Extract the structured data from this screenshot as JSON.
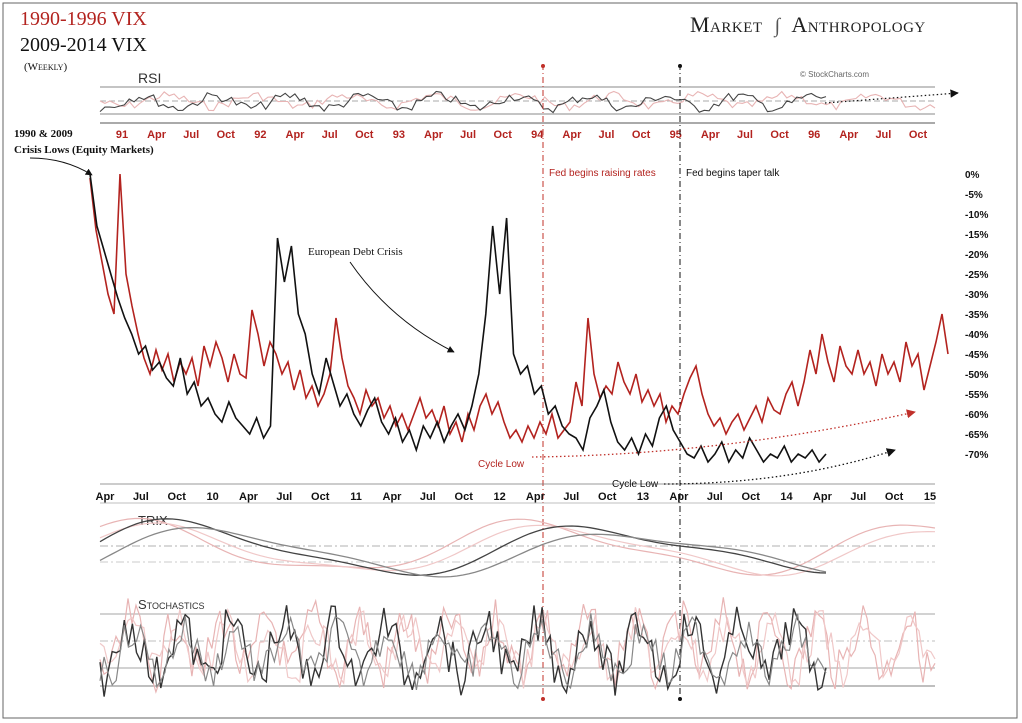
{
  "header": {
    "title_line1": "1990-1996 VIX",
    "title_line2": "2009-2014 VIX",
    "title_line3": "(Weekly)",
    "brand_left": "Market",
    "brand_right": "Anthropology",
    "brand_symbol": "dna-helix-icon",
    "credit": "© StockCharts.com"
  },
  "colors": {
    "red": "#b3231f",
    "black": "#111111",
    "pink": "#e8b4b4",
    "grey": "#777777"
  },
  "panels": {
    "rsi_label": "RSI",
    "trix_label": "TRIX",
    "stoch_label": "Stochastics"
  },
  "annotations": {
    "crisis_lows_line1": "1990 & 2009",
    "crisis_lows_line2": "Crisis Lows (Equity Markets)",
    "euro_debt": "European Debt Crisis",
    "fed_raise": "Fed begins raising rates",
    "fed_taper": "Fed begins taper talk",
    "cycle_low_red": "Cycle Low",
    "cycle_low_black": "Cycle Low"
  },
  "chart_data": {
    "type": "line",
    "top_axis_labels": [
      "91",
      "Apr",
      "Jul",
      "Oct",
      "92",
      "Apr",
      "Jul",
      "Oct",
      "93",
      "Apr",
      "Jul",
      "Oct",
      "94",
      "Apr",
      "Jul",
      "Oct",
      "95",
      "Apr",
      "Jul",
      "Oct",
      "96",
      "Apr",
      "Jul",
      "Oct"
    ],
    "bottom_axis_labels": [
      "Apr",
      "Jul",
      "Oct",
      "10",
      "Apr",
      "Jul",
      "Oct",
      "11",
      "Apr",
      "Jul",
      "Oct",
      "12",
      "Apr",
      "Jul",
      "Oct",
      "13",
      "Apr",
      "Jul",
      "Oct",
      "14",
      "Apr",
      "Jul",
      "Oct",
      "15"
    ],
    "y_tick_labels": [
      "0%",
      "-5%",
      "-10%",
      "-15%",
      "-20%",
      "-25%",
      "-30%",
      "-35%",
      "-40%",
      "-45%",
      "-50%",
      "-55%",
      "-60%",
      "-65%",
      "-70%"
    ],
    "ylim": [
      -72,
      0
    ],
    "series": [
      {
        "name": "1990-1996 VIX",
        "color": "#b3231f",
        "values": [
          -1,
          -14,
          -22,
          -30,
          -35,
          0,
          -25,
          -33,
          -40,
          -46,
          -50,
          -44,
          -49,
          -45,
          -52,
          -47,
          -50,
          -46,
          -53,
          -43,
          -48,
          -42,
          -46,
          -52,
          -45,
          -50,
          -51,
          -34,
          -40,
          -48,
          -42,
          -45,
          -50,
          -47,
          -54,
          -49,
          -56,
          -53,
          -58,
          -55,
          -50,
          -36,
          -46,
          -53,
          -56,
          -60,
          -54,
          -58,
          -56,
          -61,
          -58,
          -63,
          -60,
          -64,
          -60,
          -56,
          -61,
          -59,
          -63,
          -58,
          -65,
          -62,
          -67,
          -60,
          -64,
          -58,
          -55,
          -60,
          -57,
          -62,
          -66,
          -64,
          -67,
          -63,
          -66,
          -62,
          -65,
          -60,
          -66,
          -64,
          -62,
          -52,
          -58,
          -36,
          -50,
          -56,
          -53,
          -55,
          -47,
          -52,
          -55,
          -50,
          -57,
          -54,
          -58,
          -55,
          -62,
          -58,
          -60,
          -55,
          -51,
          -48,
          -55,
          -60,
          -63,
          -61,
          -65,
          -62,
          -60,
          -64,
          -61,
          -58,
          -62,
          -56,
          -59,
          -60,
          -55,
          -52,
          -58,
          -52,
          -44,
          -50,
          -40,
          -47,
          -52,
          -43,
          -48,
          -50,
          -44,
          -50,
          -47,
          -53,
          -45,
          -50,
          -47,
          -52,
          -42,
          -48,
          -45,
          -54,
          -48,
          -42,
          -35,
          -45
        ]
      },
      {
        "name": "2009-2014 VIX",
        "color": "#111111",
        "values": [
          0,
          -13,
          -19,
          -25,
          -31,
          -36,
          -40,
          -45,
          -43,
          -49,
          -47,
          -51,
          -53,
          -46,
          -55,
          -52,
          -58,
          -56,
          -60,
          -62,
          -57,
          -61,
          -63,
          -65,
          -61,
          -66,
          -63,
          -16,
          -27,
          -18,
          -35,
          -40,
          -50,
          -55,
          -46,
          -52,
          -58,
          -55,
          -60,
          -63,
          -59,
          -56,
          -62,
          -65,
          -61,
          -67,
          -64,
          -69,
          -63,
          -66,
          -62,
          -67,
          -63,
          -60,
          -64,
          -58,
          -50,
          -35,
          -13,
          -30,
          -11,
          -45,
          -50,
          -48,
          -55,
          -53,
          -60,
          -58,
          -63,
          -65,
          -66,
          -69,
          -61,
          -58,
          -54,
          -62,
          -67,
          -69,
          -66,
          -70,
          -65,
          -68,
          -61,
          -58,
          -64,
          -67,
          -70,
          -71,
          -68,
          -72,
          -70,
          -67,
          -72,
          -69,
          -71,
          -66,
          -69,
          -72,
          -70,
          -71,
          -68,
          -72,
          -70,
          -71,
          -69,
          -72,
          -70
        ]
      }
    ]
  }
}
